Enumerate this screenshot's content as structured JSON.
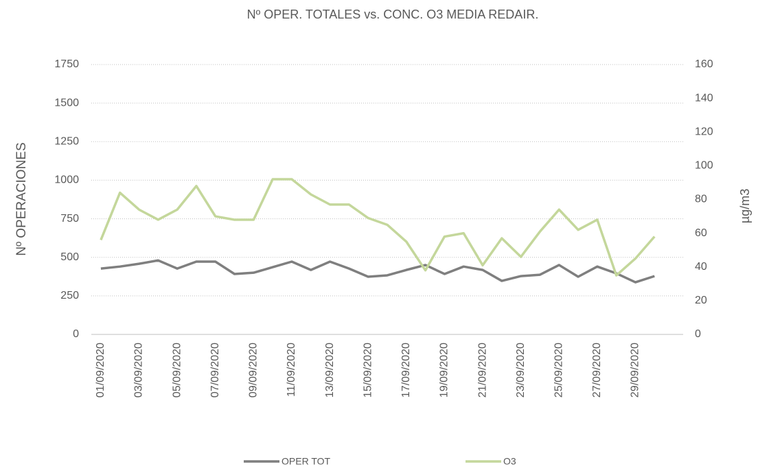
{
  "chart_data": {
    "type": "line",
    "title": "Nº OPER. TOTALES  vs. CONC. O3 MEDIA REDAIR.",
    "y_label": "Nº OPERACIONES",
    "y2_label": "µg/m3",
    "categories": [
      "01/09/2020",
      null,
      "03/09/2020",
      null,
      "05/09/2020",
      null,
      "07/09/2020",
      null,
      "09/09/2020",
      null,
      "11/09/2020",
      null,
      "13/09/2020",
      null,
      "15/09/2020",
      null,
      "17/09/2020",
      null,
      "19/09/2020",
      null,
      "21/09/2020",
      null,
      "23/09/2020",
      null,
      "25/09/2020",
      null,
      "27/09/2020",
      null,
      "29/09/2020",
      null,
      null
    ],
    "series": [
      {
        "name": "OPER TOT",
        "color": "#7f7f7f",
        "axis": "y",
        "values": [
          427,
          440,
          458,
          480,
          427,
          472,
          472,
          392,
          400,
          436,
          472,
          418,
          472,
          427,
          374,
          383,
          418,
          450,
          392,
          440,
          418,
          347,
          378,
          387,
          450,
          374,
          440,
          396,
          338,
          378,
          null
        ]
      },
      {
        "name": "O3",
        "color": "#c4d79b",
        "axis": "y2",
        "values": [
          56,
          84,
          74,
          68,
          74,
          88,
          70,
          68,
          68,
          92,
          92,
          83,
          77,
          77,
          69,
          65,
          55,
          38,
          58,
          60,
          41,
          57,
          46,
          61,
          74,
          62,
          68,
          35,
          45,
          58,
          null
        ]
      }
    ],
    "ylim": [
      0,
      1750
    ],
    "yticks": [
      0,
      250,
      500,
      750,
      1000,
      1250,
      1500,
      1750
    ],
    "y2lim": [
      0,
      160
    ],
    "y2ticks": [
      0,
      20,
      40,
      60,
      80,
      100,
      120,
      140,
      160
    ],
    "grid": true
  }
}
